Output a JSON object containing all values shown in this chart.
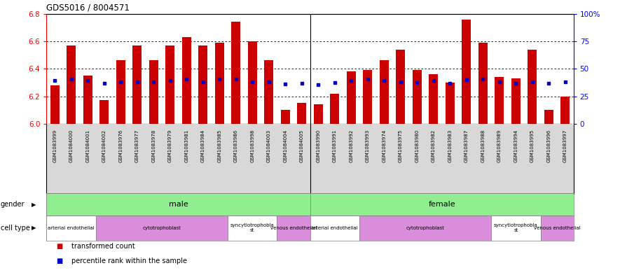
{
  "title": "GDS5016 / 8004571",
  "samples": [
    "GSM1083999",
    "GSM1084000",
    "GSM1084001",
    "GSM1084002",
    "GSM1083976",
    "GSM1083977",
    "GSM1083978",
    "GSM1083979",
    "GSM1083981",
    "GSM1083984",
    "GSM1083985",
    "GSM1083986",
    "GSM1083998",
    "GSM1084003",
    "GSM1084004",
    "GSM1084005",
    "GSM1083990",
    "GSM1083991",
    "GSM1083992",
    "GSM1083993",
    "GSM1083974",
    "GSM1083975",
    "GSM1083980",
    "GSM1083982",
    "GSM1083983",
    "GSM1083987",
    "GSM1083988",
    "GSM1083989",
    "GSM1083994",
    "GSM1083995",
    "GSM1083996",
    "GSM1083997"
  ],
  "bar_values": [
    6.28,
    6.57,
    6.35,
    6.17,
    6.46,
    6.57,
    6.46,
    6.57,
    6.63,
    6.57,
    6.59,
    6.74,
    6.6,
    6.46,
    6.1,
    6.15,
    6.14,
    6.22,
    6.38,
    6.39,
    6.46,
    6.54,
    6.39,
    6.36,
    6.3,
    6.76,
    6.59,
    6.34,
    6.33,
    6.54,
    6.1,
    6.2
  ],
  "blue_dot_values": [
    6.315,
    6.325,
    6.315,
    6.295,
    6.305,
    6.305,
    6.305,
    6.315,
    6.325,
    6.305,
    6.325,
    6.325,
    6.305,
    6.305,
    6.29,
    6.295,
    6.285,
    6.3,
    6.315,
    6.325,
    6.315,
    6.305,
    6.3,
    6.315,
    6.295,
    6.32,
    6.325,
    6.305,
    6.295,
    6.305,
    6.295,
    6.305
  ],
  "ylim": [
    6.0,
    6.8
  ],
  "yticks_left": [
    6.0,
    6.2,
    6.4,
    6.6,
    6.8
  ],
  "yticks_right": [
    0,
    25,
    50,
    75,
    100
  ],
  "ytick_labels_right": [
    "0",
    "25",
    "50",
    "75",
    "100%"
  ],
  "bar_color": "#cc0000",
  "dot_color": "#0000cc",
  "xtick_bg": "#d8d8d8",
  "plot_bg": "#ffffff",
  "gender_color": "#90ee90",
  "cell_colors": [
    "#ffffff",
    "#da8dda",
    "#ffffff",
    "#da8dda",
    "#ffffff",
    "#da8dda",
    "#ffffff",
    "#da8dda"
  ],
  "cell_types": [
    {
      "label": "arterial endothelial",
      "span": [
        0,
        2
      ],
      "color": "#ffffff"
    },
    {
      "label": "cytotrophoblast",
      "span": [
        3,
        10
      ],
      "color": "#da8dda"
    },
    {
      "label": "syncytiotrophobla\nst",
      "span": [
        11,
        13
      ],
      "color": "#ffffff"
    },
    {
      "label": "venous endothelial",
      "span": [
        14,
        15
      ],
      "color": "#da8dda"
    },
    {
      "label": "arterial endothelial",
      "span": [
        16,
        18
      ],
      "color": "#ffffff"
    },
    {
      "label": "cytotrophoblast",
      "span": [
        19,
        26
      ],
      "color": "#da8dda"
    },
    {
      "label": "syncytiotrophobla\nst",
      "span": [
        27,
        29
      ],
      "color": "#ffffff"
    },
    {
      "label": "venous endothelial",
      "span": [
        30,
        31
      ],
      "color": "#da8dda"
    }
  ]
}
